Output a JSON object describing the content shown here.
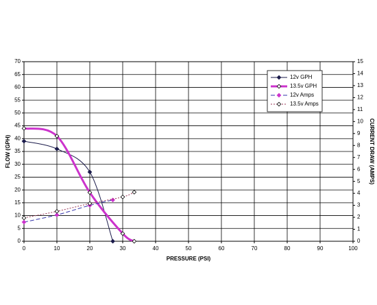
{
  "chart_data": {
    "type": "line",
    "xlabel": "PRESSURE (PSI)",
    "ylabel": "FLOW (GPH)",
    "y2label": "CURRENT DRAW (AMPS)",
    "xlim": [
      0,
      100
    ],
    "xticks": [
      0,
      10,
      20,
      30,
      40,
      50,
      60,
      70,
      80,
      90,
      100
    ],
    "ylim": [
      0,
      70
    ],
    "yticks": [
      0,
      5,
      10,
      15,
      20,
      25,
      30,
      35,
      40,
      45,
      50,
      55,
      60,
      65,
      70
    ],
    "y2lim": [
      0,
      15
    ],
    "y2ticks": [
      0,
      1,
      2,
      3,
      4,
      5,
      6,
      7,
      8,
      9,
      10,
      11,
      12,
      13,
      14,
      15
    ],
    "grid": true,
    "legend": "upper right",
    "series": [
      {
        "name": "12v GPH",
        "color": "#1a1a4a",
        "line_width": 1,
        "dash": "solid",
        "marker_fill": true,
        "x": [
          0,
          10,
          20,
          27
        ],
        "values": [
          39,
          36,
          27,
          0
        ]
      },
      {
        "name": "13.5v GPH",
        "color": "#cc33cc",
        "line_width": 3,
        "dash": "solid",
        "marker_fill": false,
        "x": [
          0,
          10,
          20,
          30,
          33.5
        ],
        "values": [
          44,
          41,
          19,
          3,
          0
        ]
      },
      {
        "name": "12v Amps",
        "color": "#3333aa",
        "marker_color": "#cc33cc",
        "line_width": 1,
        "dash": "dashed",
        "marker_fill": true,
        "axis": "y2",
        "x": [
          0,
          10,
          20,
          27
        ],
        "values": [
          1.6,
          2.2,
          3.0,
          3.45
        ]
      },
      {
        "name": "13.5v Amps",
        "color": "#993355",
        "line_width": 1,
        "dash": "dotted",
        "marker_fill": false,
        "axis": "y2",
        "x": [
          0,
          10,
          20,
          30,
          33.5
        ],
        "values": [
          1.95,
          2.5,
          3.15,
          3.7,
          4.1
        ]
      }
    ]
  }
}
